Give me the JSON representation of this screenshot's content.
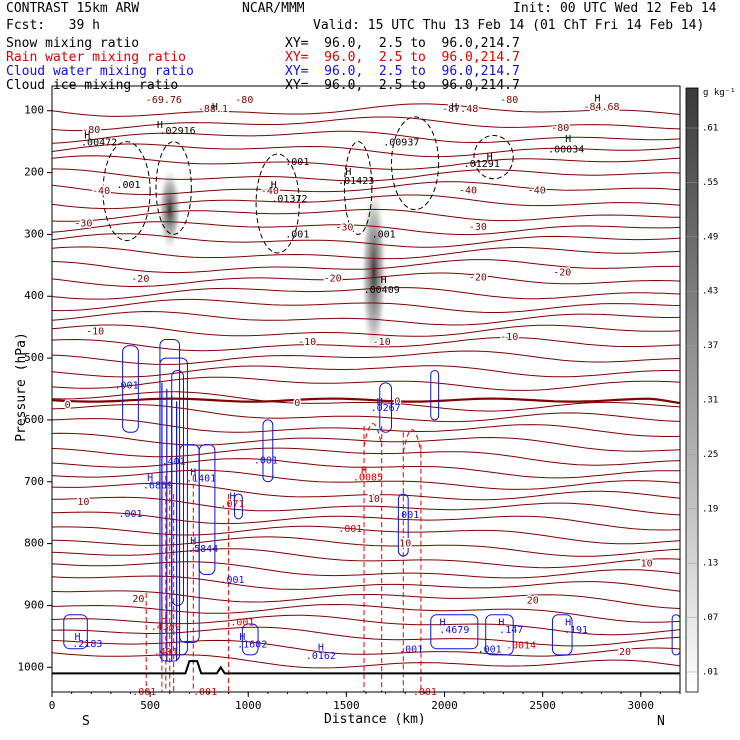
{
  "header": {
    "title": "CONTRAST 15km ARW",
    "center": "NCAR/MMM",
    "init": "Init: 00 UTC Wed 12 Feb 14",
    "fcst": "Fcst:   39 h",
    "valid": "Valid: 15 UTC Thu 13 Feb 14 (01 ChT Fri 14 Feb 14)"
  },
  "fields": [
    {
      "name": "Snow mixing ratio",
      "xy": "XY=  96.0,  2.5 to  96.0,214.7",
      "color": "#000000"
    },
    {
      "name": "Rain water mixing ratio",
      "xy": "XY=  96.0,  2.5 to  96.0,214.7",
      "color": "#e00000"
    },
    {
      "name": "Cloud water mixing ratio",
      "xy": "XY=  96.0,  2.5 to  96.0,214.7",
      "color": "#1010e0"
    },
    {
      "name": "Cloud ice mixing ratio",
      "xy": "XY=  96.0,  2.5 to  96.0,214.7",
      "color": "#000000"
    }
  ],
  "colors": {
    "temp": "#800000",
    "rain": "#e00000",
    "cloud": "#1010e0",
    "snow": "#000000"
  },
  "chart_data": {
    "type": "cross-section",
    "xlabel": "Distance (km)",
    "ylabel": "Pressure (hPa)",
    "xlim": [
      0,
      3200
    ],
    "ylim": [
      1040,
      60
    ],
    "xticks": [
      0,
      500,
      1000,
      1500,
      2000,
      2500,
      3000
    ],
    "yticks": [
      100,
      200,
      300,
      400,
      500,
      600,
      700,
      800,
      900,
      1000
    ],
    "x_end_labels": {
      "left": "S",
      "right": "N"
    },
    "colorbar": {
      "unit": "g kg⁻¹",
      "ticks": [
        ".01",
        ".07",
        ".13",
        ".19",
        ".25",
        ".31",
        ".37",
        ".43",
        ".49",
        ".55",
        ".61"
      ]
    },
    "temperature_labels": [
      {
        "t": "-69.76",
        "x": 570,
        "p": 83
      },
      {
        "t": "-80",
        "x": 980,
        "p": 83
      },
      {
        "t": "-88.1",
        "x": 820,
        "p": 97
      },
      {
        "t": "-80",
        "x": 2330,
        "p": 83
      },
      {
        "t": "-87.48",
        "x": 2080,
        "p": 97
      },
      {
        "t": "-84.68",
        "x": 2800,
        "p": 94
      },
      {
        "t": "-80",
        "x": 200,
        "p": 131
      },
      {
        "t": "-80",
        "x": 2590,
        "p": 128
      },
      {
        "t": "-40",
        "x": 250,
        "p": 230
      },
      {
        "t": "-40",
        "x": 1110,
        "p": 230
      },
      {
        "t": "-40",
        "x": 2120,
        "p": 229
      },
      {
        "t": "-40",
        "x": 2470,
        "p": 229
      },
      {
        "t": "-30",
        "x": 160,
        "p": 282
      },
      {
        "t": "-30",
        "x": 1490,
        "p": 289
      },
      {
        "t": "-30",
        "x": 2170,
        "p": 288
      },
      {
        "t": "-20",
        "x": 450,
        "p": 372
      },
      {
        "t": "-20",
        "x": 1430,
        "p": 371
      },
      {
        "t": "-20",
        "x": 2170,
        "p": 370
      },
      {
        "t": "-20",
        "x": 2600,
        "p": 362
      },
      {
        "t": "-10",
        "x": 220,
        "p": 457
      },
      {
        "t": "-10",
        "x": 1300,
        "p": 474
      },
      {
        "t": "-10",
        "x": 1680,
        "p": 474
      },
      {
        "t": "-10",
        "x": 2330,
        "p": 466
      },
      {
        "t": "0",
        "x": 80,
        "p": 576
      },
      {
        "t": "0",
        "x": 1250,
        "p": 573
      },
      {
        "t": "0",
        "x": 1760,
        "p": 570
      },
      {
        "t": "10",
        "x": 160,
        "p": 733
      },
      {
        "t": "10",
        "x": 1640,
        "p": 728
      },
      {
        "t": "10",
        "x": 1800,
        "p": 800
      },
      {
        "t": "10",
        "x": 3030,
        "p": 832
      },
      {
        "t": "20",
        "x": 440,
        "p": 890
      },
      {
        "t": "20",
        "x": 2450,
        "p": 892
      },
      {
        "t": "20",
        "x": 2920,
        "p": 975
      }
    ],
    "snow_labels": [
      {
        "t": ".00472",
        "x": 240,
        "p": 151
      },
      {
        "t": ".02916",
        "x": 640,
        "p": 133
      },
      {
        "t": ".001",
        "x": 1250,
        "p": 183
      },
      {
        "t": ".00937",
        "x": 1780,
        "p": 151
      },
      {
        "t": ".01291",
        "x": 2190,
        "p": 186
      },
      {
        "t": ".00034",
        "x": 2620,
        "p": 163
      },
      {
        "t": ".001",
        "x": 390,
        "p": 220
      },
      {
        "t": ".01372",
        "x": 1210,
        "p": 243
      },
      {
        "t": ".01423",
        "x": 1550,
        "p": 214
      },
      {
        "t": ".001",
        "x": 1250,
        "p": 300
      },
      {
        "t": ".001",
        "x": 1690,
        "p": 300
      },
      {
        "t": ".00409",
        "x": 1680,
        "p": 390
      }
    ],
    "snow_highs": [
      {
        "x": 180,
        "p": 140
      },
      {
        "x": 550,
        "p": 123
      },
      {
        "x": 1130,
        "p": 220
      },
      {
        "x": 1510,
        "p": 199
      },
      {
        "x": 1690,
        "p": 374
      },
      {
        "x": 2230,
        "p": 175
      },
      {
        "x": 2630,
        "p": 146
      },
      {
        "x": 830,
        "p": 94
      },
      {
        "x": 2050,
        "p": 94
      },
      {
        "x": 2780,
        "p": 80
      }
    ],
    "rain_labels": [
      {
        "t": ".0085",
        "x": 1610,
        "p": 693
      },
      {
        "t": ".001",
        "x": 1520,
        "p": 776
      },
      {
        "t": ".071",
        "x": 920,
        "p": 736
      },
      {
        "t": ".4359",
        "x": 580,
        "p": 935
      },
      {
        "t": ".401",
        "x": 580,
        "p": 975
      },
      {
        "t": ".001",
        "x": 970,
        "p": 928
      },
      {
        "t": ".001",
        "x": 470,
        "p": 1040
      },
      {
        "t": ".001",
        "x": 780,
        "p": 1040
      },
      {
        "t": ".001",
        "x": 1900,
        "p": 1040
      },
      {
        "t": ".0014",
        "x": 2390,
        "p": 965
      }
    ],
    "cloud_labels": [
      {
        "t": ".001",
        "x": 380,
        "p": 544
      },
      {
        "t": ".401",
        "x": 620,
        "p": 667
      },
      {
        "t": ".001",
        "x": 1090,
        "p": 666
      },
      {
        "t": ".6869",
        "x": 540,
        "p": 706
      },
      {
        "t": ".1401",
        "x": 760,
        "p": 695
      },
      {
        "t": ".001",
        "x": 400,
        "p": 752
      },
      {
        "t": ".5844",
        "x": 770,
        "p": 809
      },
      {
        "t": ".001",
        "x": 920,
        "p": 859
      },
      {
        "t": ".2183",
        "x": 180,
        "p": 962
      },
      {
        "t": ".1602",
        "x": 1020,
        "p": 963
      },
      {
        "t": ".0162",
        "x": 1370,
        "p": 982
      },
      {
        "t": ".0267",
        "x": 1700,
        "p": 581
      },
      {
        "t": ".001",
        "x": 1810,
        "p": 754
      },
      {
        "t": ".001",
        "x": 1830,
        "p": 971
      },
      {
        "t": ".4679",
        "x": 2050,
        "p": 940
      },
      {
        "t": ".001",
        "x": 2230,
        "p": 971
      },
      {
        "t": ".147",
        "x": 2340,
        "p": 940
      },
      {
        "t": ".191",
        "x": 2670,
        "p": 940
      }
    ],
    "cloud_highs": [
      {
        "x": 130,
        "p": 951
      },
      {
        "x": 500,
        "p": 694
      },
      {
        "x": 720,
        "p": 685
      },
      {
        "x": 720,
        "p": 796
      },
      {
        "x": 970,
        "p": 951
      },
      {
        "x": 1370,
        "p": 968
      },
      {
        "x": 1670,
        "p": 571
      },
      {
        "x": 1990,
        "p": 928
      },
      {
        "x": 2290,
        "p": 928
      },
      {
        "x": 2630,
        "p": 928
      },
      {
        "x": 920,
        "p": 724
      }
    ],
    "rain_highs": [
      {
        "x": 1590,
        "p": 682
      },
      {
        "x": 570,
        "p": 923
      }
    ],
    "snow_plumes": [
      {
        "x": 600,
        "ptop": 190,
        "pbot": 330,
        "w": 40
      },
      {
        "x": 1640,
        "ptop": 210,
        "pbot": 510,
        "w": 45
      }
    ]
  }
}
